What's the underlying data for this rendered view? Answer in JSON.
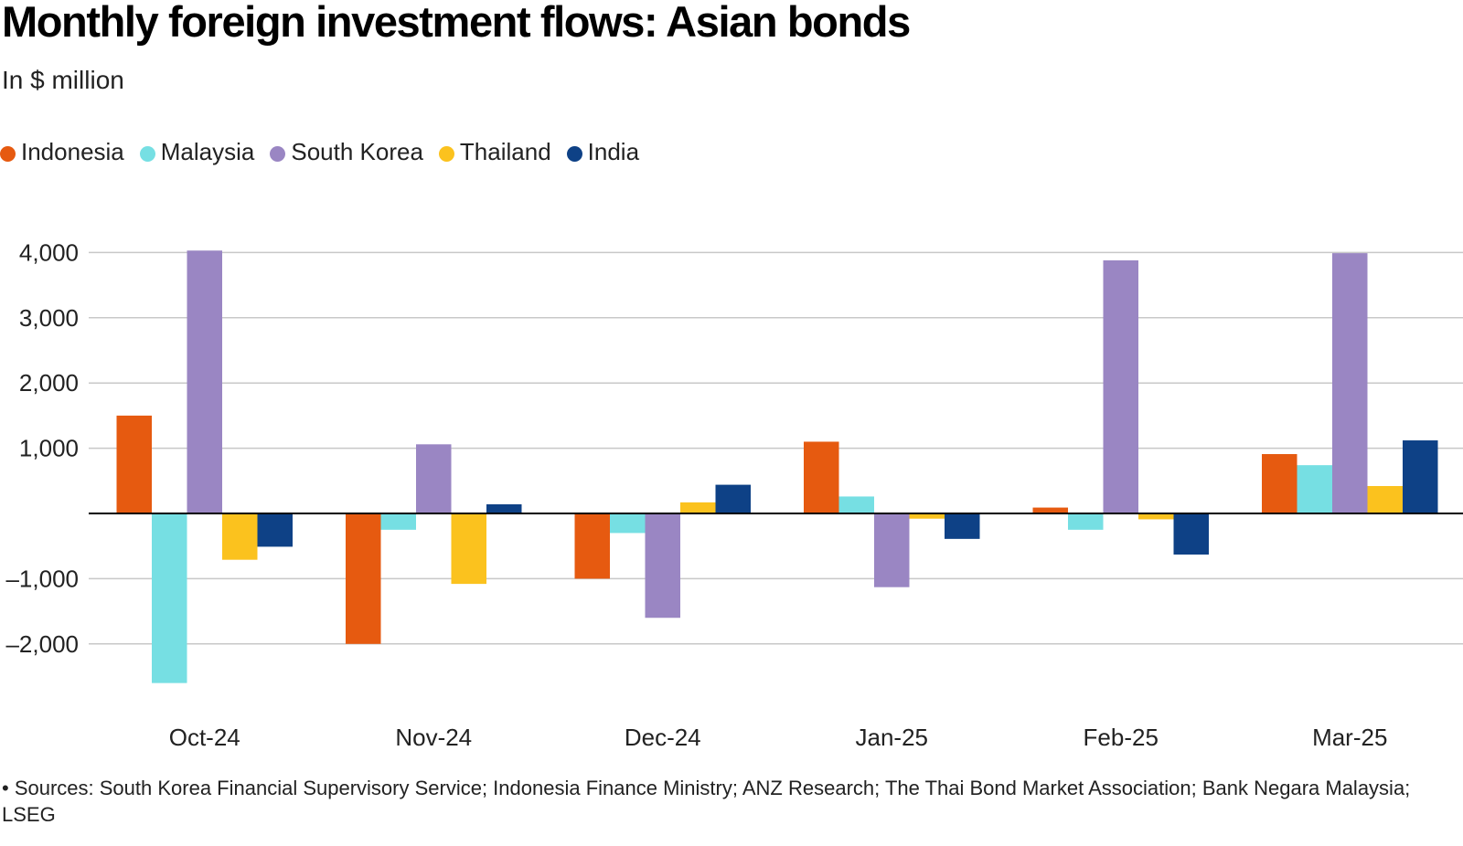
{
  "title": "Monthly foreign investment flows: Asian bonds",
  "subtitle": "In $ million",
  "source": "• Sources: South Korea Financial Supervisory Service; Indonesia Finance Ministry; ANZ Research; The Thai Bond Market Association; Bank Negara Malaysia; LSEG",
  "chart_data": {
    "type": "bar",
    "title": "Monthly foreign investment flows: Asian bonds",
    "ylabel": "In $ million",
    "xlabel": "",
    "ylim": [
      -3000,
      4000
    ],
    "yticks": [
      4000,
      3000,
      2000,
      1000,
      -1000,
      -2000
    ],
    "ytick_labels": [
      "4,000",
      "3,000",
      "2,000",
      "1,000",
      "–1,000",
      "–2,000"
    ],
    "grid": true,
    "legend_position": "top-left",
    "categories": [
      "Oct-24",
      "Nov-24",
      "Dec-24",
      "Jan-25",
      "Feb-25",
      "Mar-25"
    ],
    "series": [
      {
        "name": "Indonesia",
        "color": "#e65a10",
        "values": [
          1500,
          -2000,
          -1000,
          1100,
          90,
          910
        ]
      },
      {
        "name": "Malaysia",
        "color": "#76dfe3",
        "values": [
          -2600,
          -250,
          -300,
          260,
          -250,
          740
        ]
      },
      {
        "name": "South Korea",
        "color": "#9a86c3",
        "values": [
          4030,
          1060,
          -1600,
          -1130,
          3880,
          3990
        ]
      },
      {
        "name": "Thailand",
        "color": "#fbc21e",
        "values": [
          -710,
          -1080,
          170,
          -80,
          -90,
          420
        ]
      },
      {
        "name": "India",
        "color": "#0e4186",
        "values": [
          -510,
          140,
          440,
          -390,
          -630,
          1120
        ]
      }
    ]
  }
}
